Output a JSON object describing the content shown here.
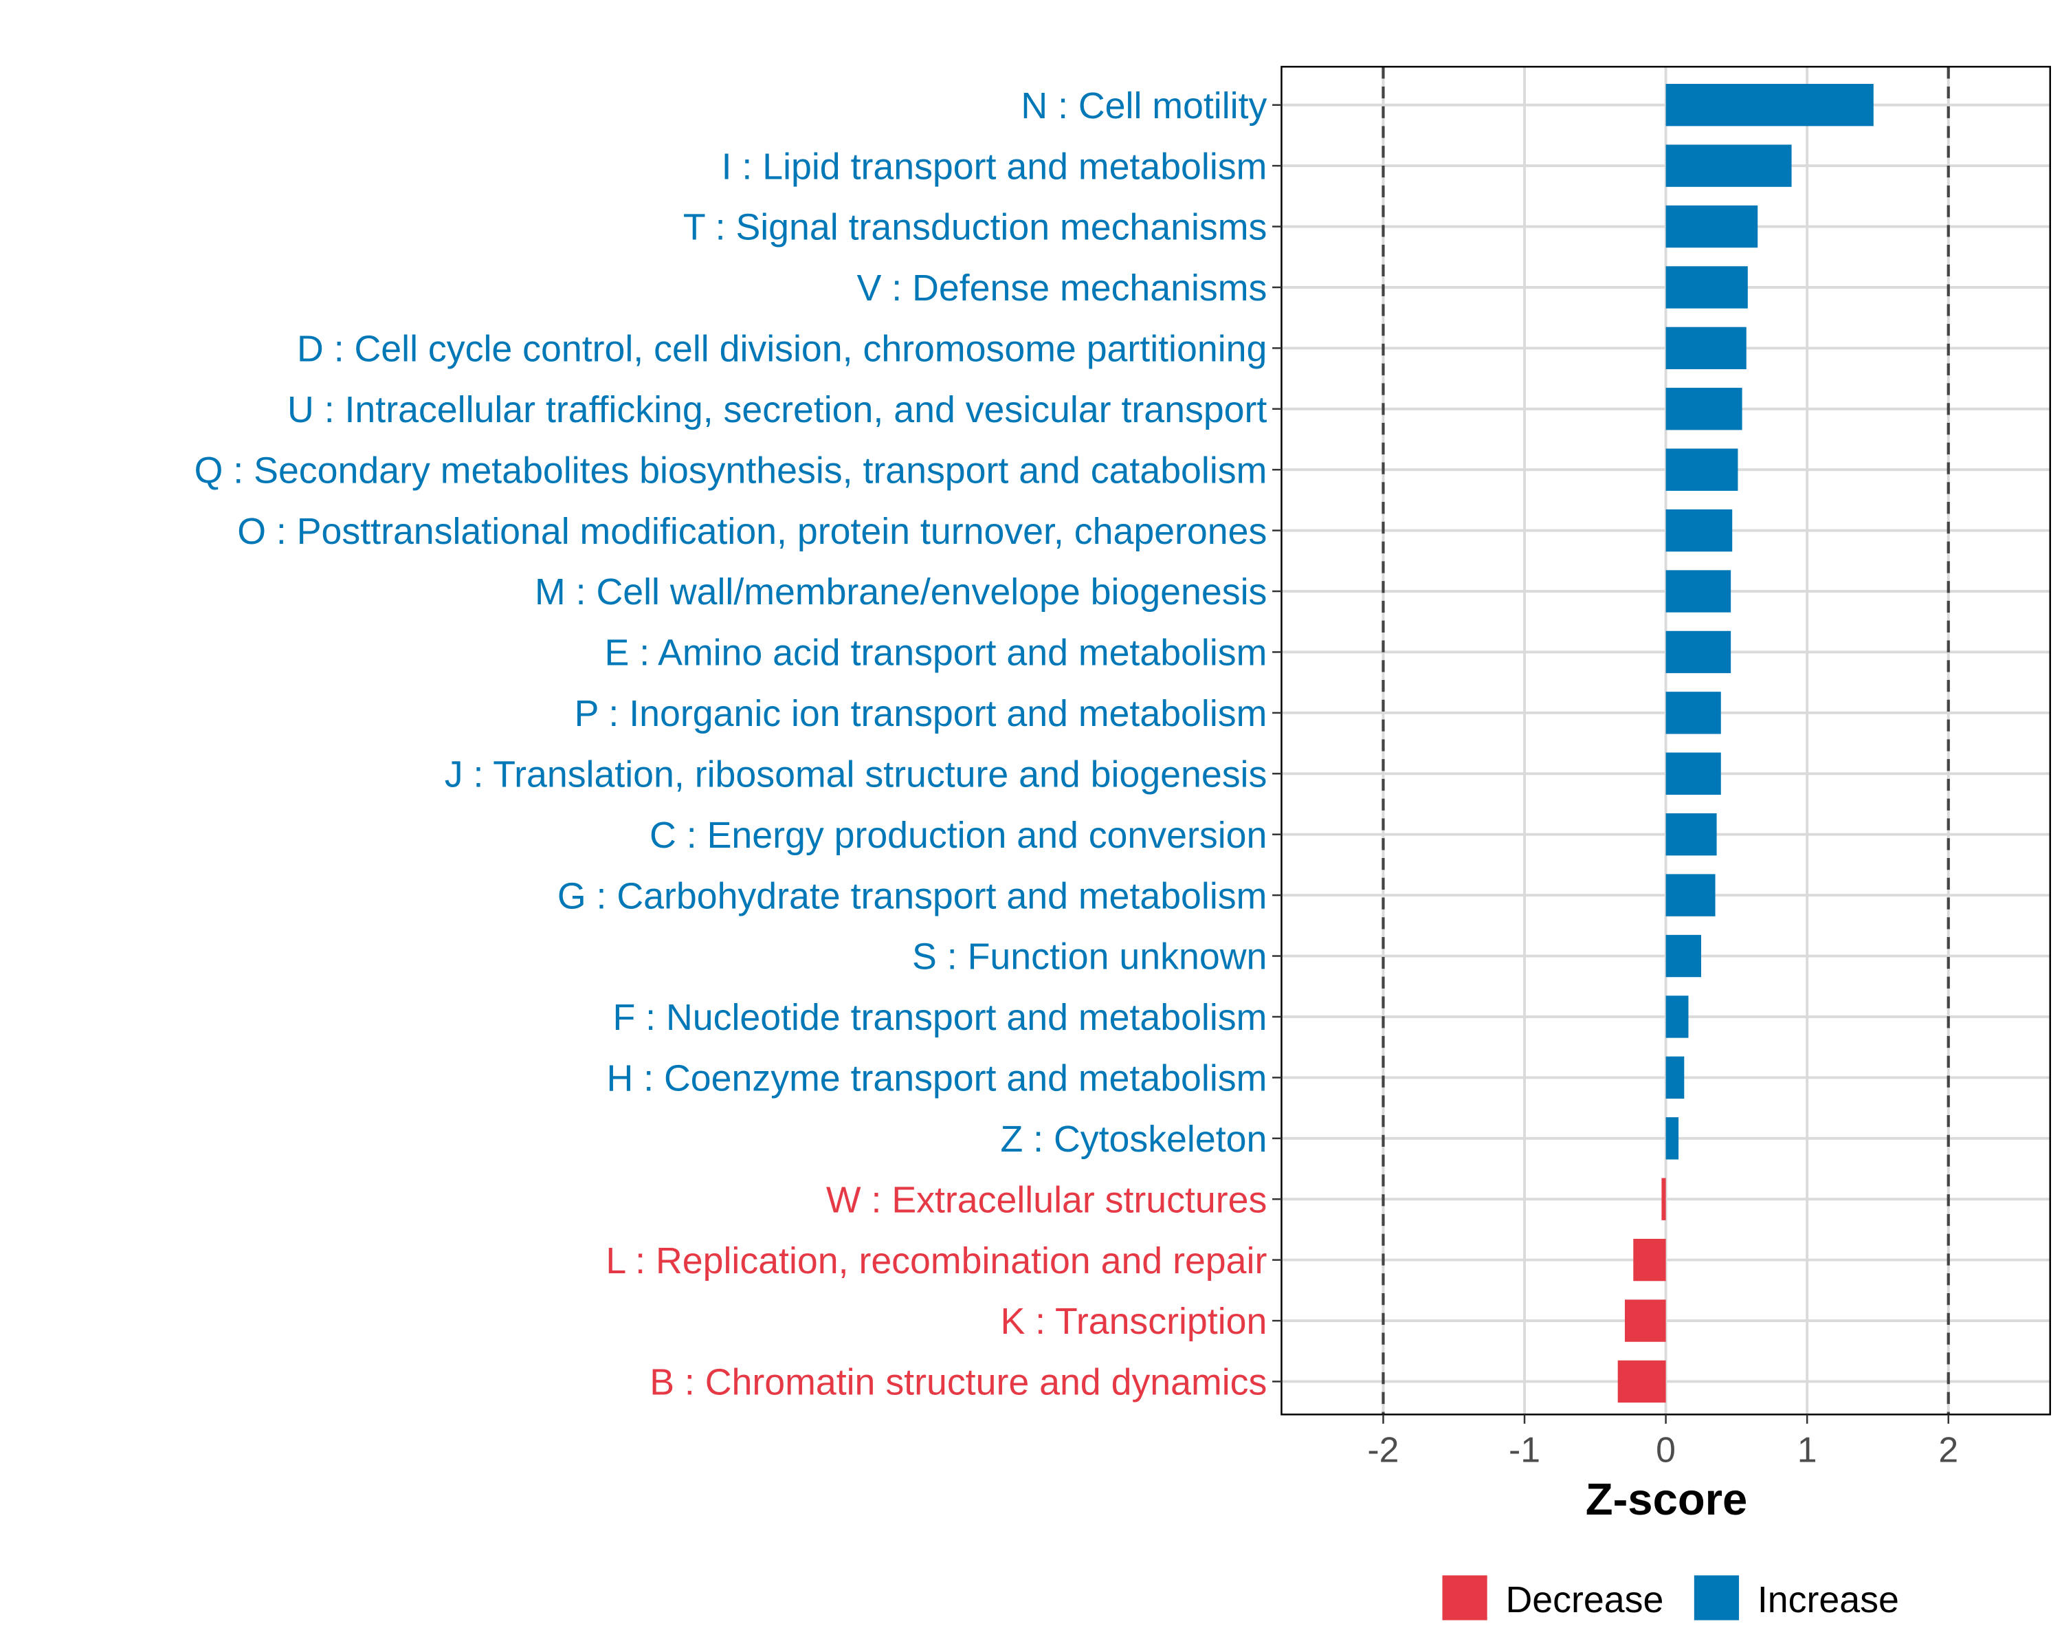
{
  "chart_data": {
    "type": "bar",
    "orientation": "horizontal",
    "title": "",
    "xlabel": "Z-score",
    "ylabel": "",
    "xlim": [
      -2.72,
      2.72
    ],
    "xticks": [
      -2,
      -1,
      0,
      1,
      2
    ],
    "xtick_labels": [
      "-2",
      "-1",
      "0",
      "1",
      "2"
    ],
    "reference_lines": [
      -2,
      2
    ],
    "grid": true,
    "colors": {
      "Decrease": "#E63946",
      "Increase": "#0077B6"
    },
    "legend": {
      "position": "bottom",
      "entries": [
        "Decrease",
        "Increase"
      ]
    },
    "categories": [
      "N : Cell motility",
      "I : Lipid transport and metabolism",
      "T : Signal transduction mechanisms",
      "V : Defense mechanisms",
      "D : Cell cycle control, cell division, chromosome partitioning",
      "U : Intracellular trafficking, secretion, and vesicular transport",
      "Q : Secondary metabolites biosynthesis, transport and catabolism",
      "O : Posttranslational modification, protein turnover, chaperones",
      "M : Cell wall/membrane/envelope biogenesis",
      "E : Amino acid transport and metabolism",
      "P : Inorganic ion transport and metabolism",
      "J : Translation, ribosomal structure and biogenesis",
      "C : Energy production and conversion",
      "G : Carbohydrate transport and metabolism",
      "S : Function unknown",
      "F : Nucleotide transport and metabolism",
      "H : Coenzyme transport and metabolism",
      "Z : Cytoskeleton",
      "W : Extracellular structures",
      "L : Replication, recombination and repair",
      "K : Transcription",
      "B : Chromatin structure and dynamics"
    ],
    "values": [
      1.47,
      0.89,
      0.65,
      0.58,
      0.57,
      0.54,
      0.51,
      0.47,
      0.46,
      0.46,
      0.39,
      0.39,
      0.36,
      0.35,
      0.25,
      0.16,
      0.13,
      0.09,
      -0.03,
      -0.23,
      -0.29,
      -0.34
    ],
    "groups": [
      "Increase",
      "Increase",
      "Increase",
      "Increase",
      "Increase",
      "Increase",
      "Increase",
      "Increase",
      "Increase",
      "Increase",
      "Increase",
      "Increase",
      "Increase",
      "Increase",
      "Increase",
      "Increase",
      "Increase",
      "Increase",
      "Decrease",
      "Decrease",
      "Decrease",
      "Decrease"
    ]
  }
}
